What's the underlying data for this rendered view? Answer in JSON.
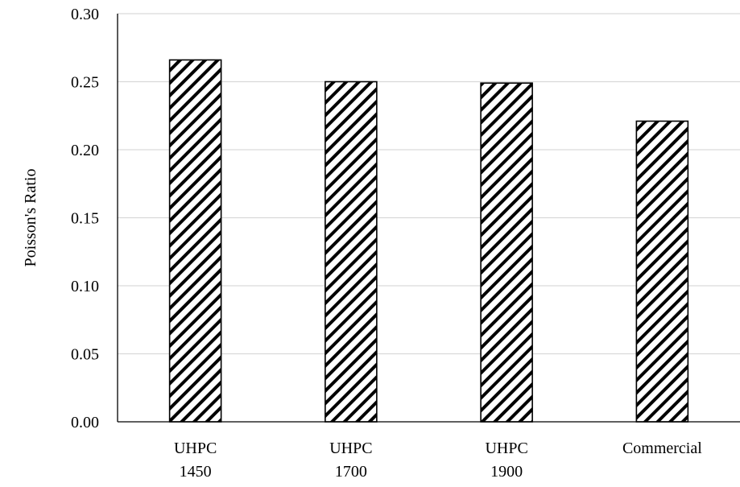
{
  "chart_data": {
    "type": "bar",
    "categories": [
      [
        "UHPC",
        "1450"
      ],
      [
        "UHPC",
        "1700"
      ],
      [
        "UHPC",
        "1900"
      ],
      [
        "Commercial"
      ]
    ],
    "values": [
      0.266,
      0.25,
      0.249,
      0.221
    ],
    "ylabel": "Poisson's Ratio",
    "xlabel": "",
    "ylim": [
      0,
      0.3
    ],
    "yticks": [
      "0.00",
      "0.05",
      "0.10",
      "0.15",
      "0.20",
      "0.25",
      "0.30"
    ],
    "grid": true,
    "bar_fill": "diagonal-hatch",
    "colors": {
      "bar_stroke": "#000000",
      "hatch": "#000000",
      "grid": "#d9d9d9",
      "axis": "#000000"
    }
  }
}
